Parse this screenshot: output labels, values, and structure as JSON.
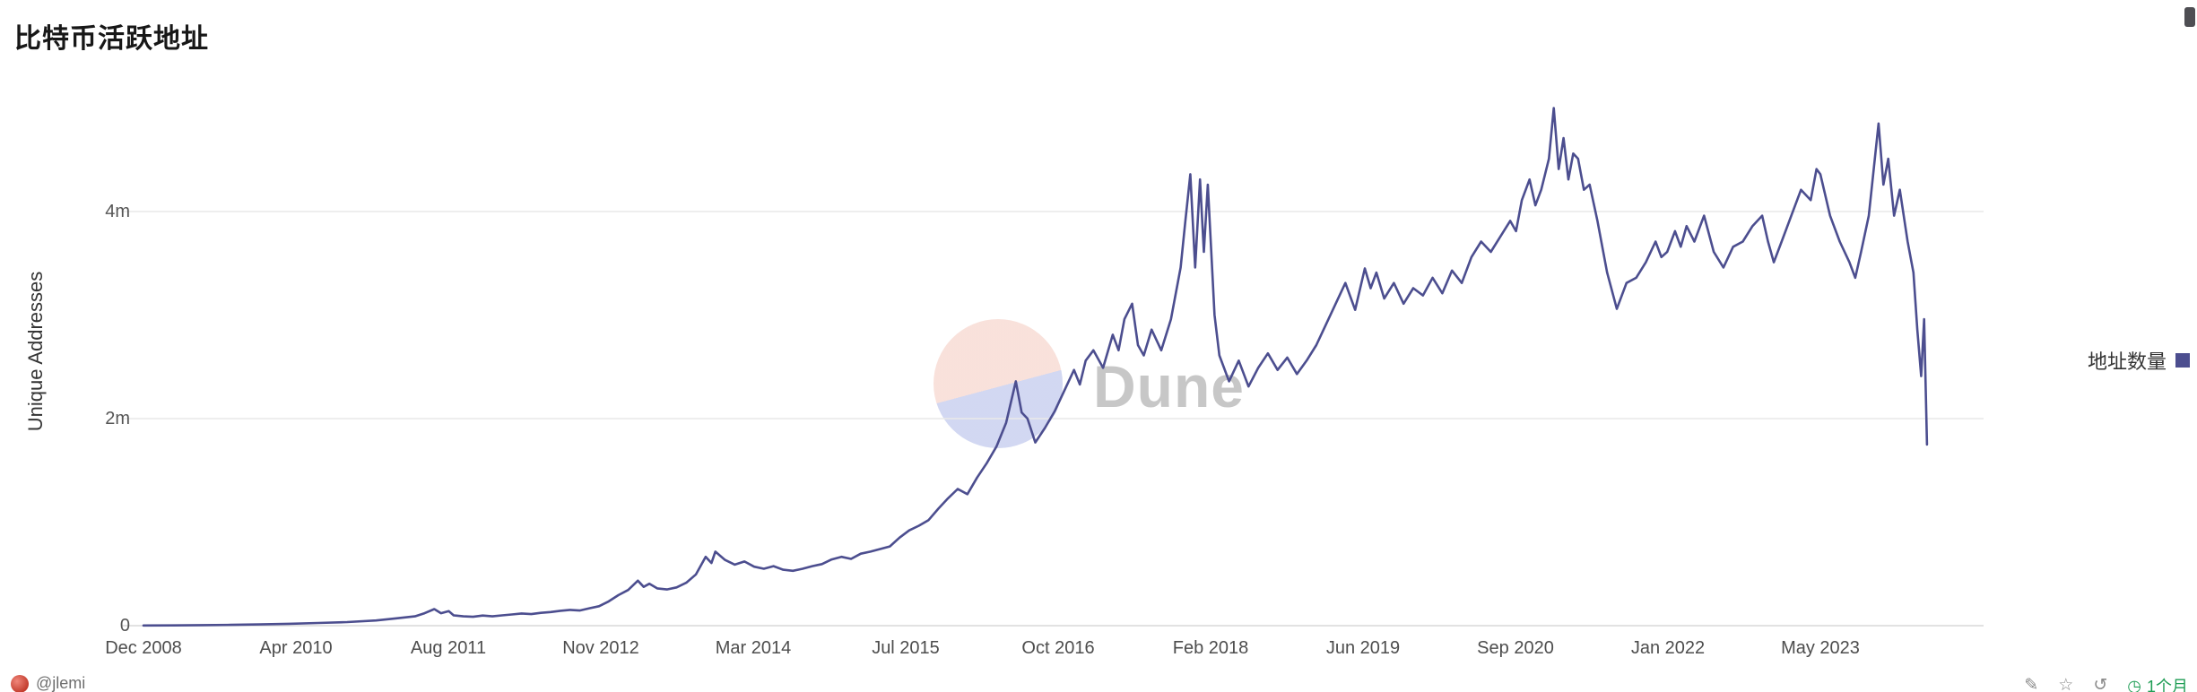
{
  "title": "比特币活跃地址",
  "watermark": {
    "text": "Dune"
  },
  "legend": {
    "label": "地址数量",
    "color": "#4c4e8f"
  },
  "colors": {
    "line": "#4c4e8f",
    "grid": "#e9e9e9",
    "zero_line": "#d9d9d9",
    "background": "#ffffff",
    "freshness_green": "#1f9d55"
  },
  "y_axis": {
    "title": "Unique Addresses",
    "ticks": [
      {
        "label": "4m",
        "value": 4
      },
      {
        "label": "2m",
        "value": 2
      },
      {
        "label": "0",
        "value": 0
      }
    ]
  },
  "x_axis": {
    "ticks": [
      "Dec 2008",
      "Apr 2010",
      "Aug 2011",
      "Nov 2012",
      "Mar 2014",
      "Jul 2015",
      "Oct 2016",
      "Feb 2018",
      "Jun 2019",
      "Sep 2020",
      "Jan 2022",
      "May 2023"
    ]
  },
  "footer": {
    "author": "@jlemi",
    "icons": [
      {
        "name": "pencil-icon",
        "glyph": "✎"
      },
      {
        "name": "star-icon",
        "glyph": "☆"
      },
      {
        "name": "refresh-icon",
        "glyph": "↺"
      }
    ],
    "freshness_icon": "◷",
    "freshness": "1个月"
  },
  "chart_data": {
    "type": "line",
    "title": "比特币活跃地址",
    "series_name": "地址数量",
    "xlabel": "",
    "ylabel": "Unique Addresses",
    "unit": "million addresses",
    "x_encoding": "months since Dec 2008 (fractional = intra-month spikes)",
    "ylim": [
      0,
      5.2
    ],
    "grid": "horizontal",
    "legend_position": "right",
    "x_tick_months": [
      0,
      16,
      32,
      47,
      63,
      79,
      94,
      110,
      126,
      141,
      157,
      173
    ],
    "x_tick_labels": [
      "Dec 2008",
      "Apr 2010",
      "Aug 2011",
      "Nov 2012",
      "Mar 2014",
      "Jul 2015",
      "Oct 2016",
      "Feb 2018",
      "Jun 2019",
      "Sep 2020",
      "Jan 2022",
      "May 2023"
    ],
    "points": [
      [
        0,
        0.002
      ],
      [
        3,
        0.003
      ],
      [
        6,
        0.005
      ],
      [
        9,
        0.008
      ],
      [
        12,
        0.012
      ],
      [
        15,
        0.018
      ],
      [
        18,
        0.026
      ],
      [
        21,
        0.035
      ],
      [
        24,
        0.05
      ],
      [
        26,
        0.07
      ],
      [
        28,
        0.09
      ],
      [
        29,
        0.12
      ],
      [
        30,
        0.16
      ],
      [
        30.7,
        0.12
      ],
      [
        31.5,
        0.14
      ],
      [
        32,
        0.1
      ],
      [
        33,
        0.09
      ],
      [
        34,
        0.086
      ],
      [
        35,
        0.098
      ],
      [
        36,
        0.09
      ],
      [
        37,
        0.1
      ],
      [
        38,
        0.108
      ],
      [
        39,
        0.118
      ],
      [
        40,
        0.112
      ],
      [
        41,
        0.124
      ],
      [
        42,
        0.132
      ],
      [
        43,
        0.144
      ],
      [
        44,
        0.152
      ],
      [
        45,
        0.146
      ],
      [
        46,
        0.168
      ],
      [
        47,
        0.188
      ],
      [
        48,
        0.235
      ],
      [
        49,
        0.295
      ],
      [
        50,
        0.345
      ],
      [
        51,
        0.435
      ],
      [
        51.6,
        0.375
      ],
      [
        52.2,
        0.405
      ],
      [
        53,
        0.36
      ],
      [
        54,
        0.35
      ],
      [
        55,
        0.37
      ],
      [
        56,
        0.415
      ],
      [
        57,
        0.495
      ],
      [
        58,
        0.665
      ],
      [
        58.6,
        0.605
      ],
      [
        59,
        0.715
      ],
      [
        60,
        0.635
      ],
      [
        61,
        0.59
      ],
      [
        62,
        0.62
      ],
      [
        63,
        0.57
      ],
      [
        64,
        0.55
      ],
      [
        65,
        0.575
      ],
      [
        66,
        0.54
      ],
      [
        67,
        0.53
      ],
      [
        68,
        0.55
      ],
      [
        69,
        0.575
      ],
      [
        70,
        0.595
      ],
      [
        71,
        0.64
      ],
      [
        72,
        0.665
      ],
      [
        73,
        0.645
      ],
      [
        74,
        0.695
      ],
      [
        75,
        0.715
      ],
      [
        76,
        0.74
      ],
      [
        77,
        0.765
      ],
      [
        78,
        0.85
      ],
      [
        79,
        0.92
      ],
      [
        80,
        0.965
      ],
      [
        81,
        1.02
      ],
      [
        82,
        1.13
      ],
      [
        83,
        1.23
      ],
      [
        84,
        1.32
      ],
      [
        85,
        1.27
      ],
      [
        86,
        1.43
      ],
      [
        87,
        1.57
      ],
      [
        88,
        1.73
      ],
      [
        89,
        1.96
      ],
      [
        90,
        2.36
      ],
      [
        90.6,
        2.06
      ],
      [
        91.2,
        2.0
      ],
      [
        92,
        1.77
      ],
      [
        93,
        1.91
      ],
      [
        94,
        2.07
      ],
      [
        95,
        2.27
      ],
      [
        96,
        2.47
      ],
      [
        96.6,
        2.33
      ],
      [
        97.2,
        2.56
      ],
      [
        98,
        2.66
      ],
      [
        99,
        2.49
      ],
      [
        100,
        2.81
      ],
      [
        100.6,
        2.66
      ],
      [
        101.2,
        2.96
      ],
      [
        102,
        3.11
      ],
      [
        102.6,
        2.71
      ],
      [
        103.2,
        2.61
      ],
      [
        104,
        2.86
      ],
      [
        105,
        2.66
      ],
      [
        106,
        2.96
      ],
      [
        107,
        3.46
      ],
      [
        107.5,
        3.92
      ],
      [
        108,
        4.36
      ],
      [
        108.5,
        3.46
      ],
      [
        109,
        4.31
      ],
      [
        109.4,
        3.61
      ],
      [
        109.8,
        4.26
      ],
      [
        110.5,
        3.0
      ],
      [
        111,
        2.61
      ],
      [
        112,
        2.36
      ],
      [
        113,
        2.56
      ],
      [
        114,
        2.31
      ],
      [
        115,
        2.49
      ],
      [
        116,
        2.63
      ],
      [
        117,
        2.47
      ],
      [
        118,
        2.59
      ],
      [
        119,
        2.43
      ],
      [
        120,
        2.56
      ],
      [
        121,
        2.71
      ],
      [
        122,
        2.91
      ],
      [
        123,
        3.11
      ],
      [
        124,
        3.31
      ],
      [
        125,
        3.05
      ],
      [
        126,
        3.45
      ],
      [
        126.6,
        3.26
      ],
      [
        127.2,
        3.41
      ],
      [
        128,
        3.16
      ],
      [
        129,
        3.31
      ],
      [
        130,
        3.11
      ],
      [
        131,
        3.26
      ],
      [
        132,
        3.19
      ],
      [
        133,
        3.36
      ],
      [
        134,
        3.21
      ],
      [
        135,
        3.43
      ],
      [
        136,
        3.31
      ],
      [
        137,
        3.56
      ],
      [
        138,
        3.71
      ],
      [
        139,
        3.61
      ],
      [
        140,
        3.76
      ],
      [
        141,
        3.91
      ],
      [
        141.6,
        3.81
      ],
      [
        142.2,
        4.11
      ],
      [
        143,
        4.31
      ],
      [
        143.6,
        4.06
      ],
      [
        144.2,
        4.21
      ],
      [
        145,
        4.51
      ],
      [
        145.5,
        5.0
      ],
      [
        146,
        4.41
      ],
      [
        146.5,
        4.71
      ],
      [
        147,
        4.31
      ],
      [
        147.5,
        4.56
      ],
      [
        148,
        4.51
      ],
      [
        148.6,
        4.21
      ],
      [
        149.2,
        4.26
      ],
      [
        150,
        3.91
      ],
      [
        151,
        3.41
      ],
      [
        152,
        3.06
      ],
      [
        153,
        3.31
      ],
      [
        154,
        3.36
      ],
      [
        155,
        3.51
      ],
      [
        156,
        3.71
      ],
      [
        156.6,
        3.56
      ],
      [
        157.2,
        3.61
      ],
      [
        158,
        3.81
      ],
      [
        158.6,
        3.66
      ],
      [
        159.2,
        3.86
      ],
      [
        160,
        3.71
      ],
      [
        161,
        3.96
      ],
      [
        162,
        3.61
      ],
      [
        163,
        3.46
      ],
      [
        164,
        3.66
      ],
      [
        165,
        3.71
      ],
      [
        166,
        3.86
      ],
      [
        167,
        3.96
      ],
      [
        167.6,
        3.71
      ],
      [
        168.2,
        3.51
      ],
      [
        169,
        3.71
      ],
      [
        170,
        3.96
      ],
      [
        171,
        4.21
      ],
      [
        172,
        4.11
      ],
      [
        172.6,
        4.41
      ],
      [
        173,
        4.36
      ],
      [
        174,
        3.96
      ],
      [
        175,
        3.71
      ],
      [
        176,
        3.51
      ],
      [
        176.6,
        3.36
      ],
      [
        177.2,
        3.61
      ],
      [
        178,
        3.96
      ],
      [
        179,
        4.85
      ],
      [
        179.5,
        4.26
      ],
      [
        180,
        4.51
      ],
      [
        180.6,
        3.96
      ],
      [
        181.2,
        4.21
      ],
      [
        182,
        3.71
      ],
      [
        182.6,
        3.41
      ],
      [
        183,
        2.86
      ],
      [
        183.4,
        2.41
      ],
      [
        183.7,
        2.96
      ],
      [
        184,
        1.75
      ]
    ]
  }
}
